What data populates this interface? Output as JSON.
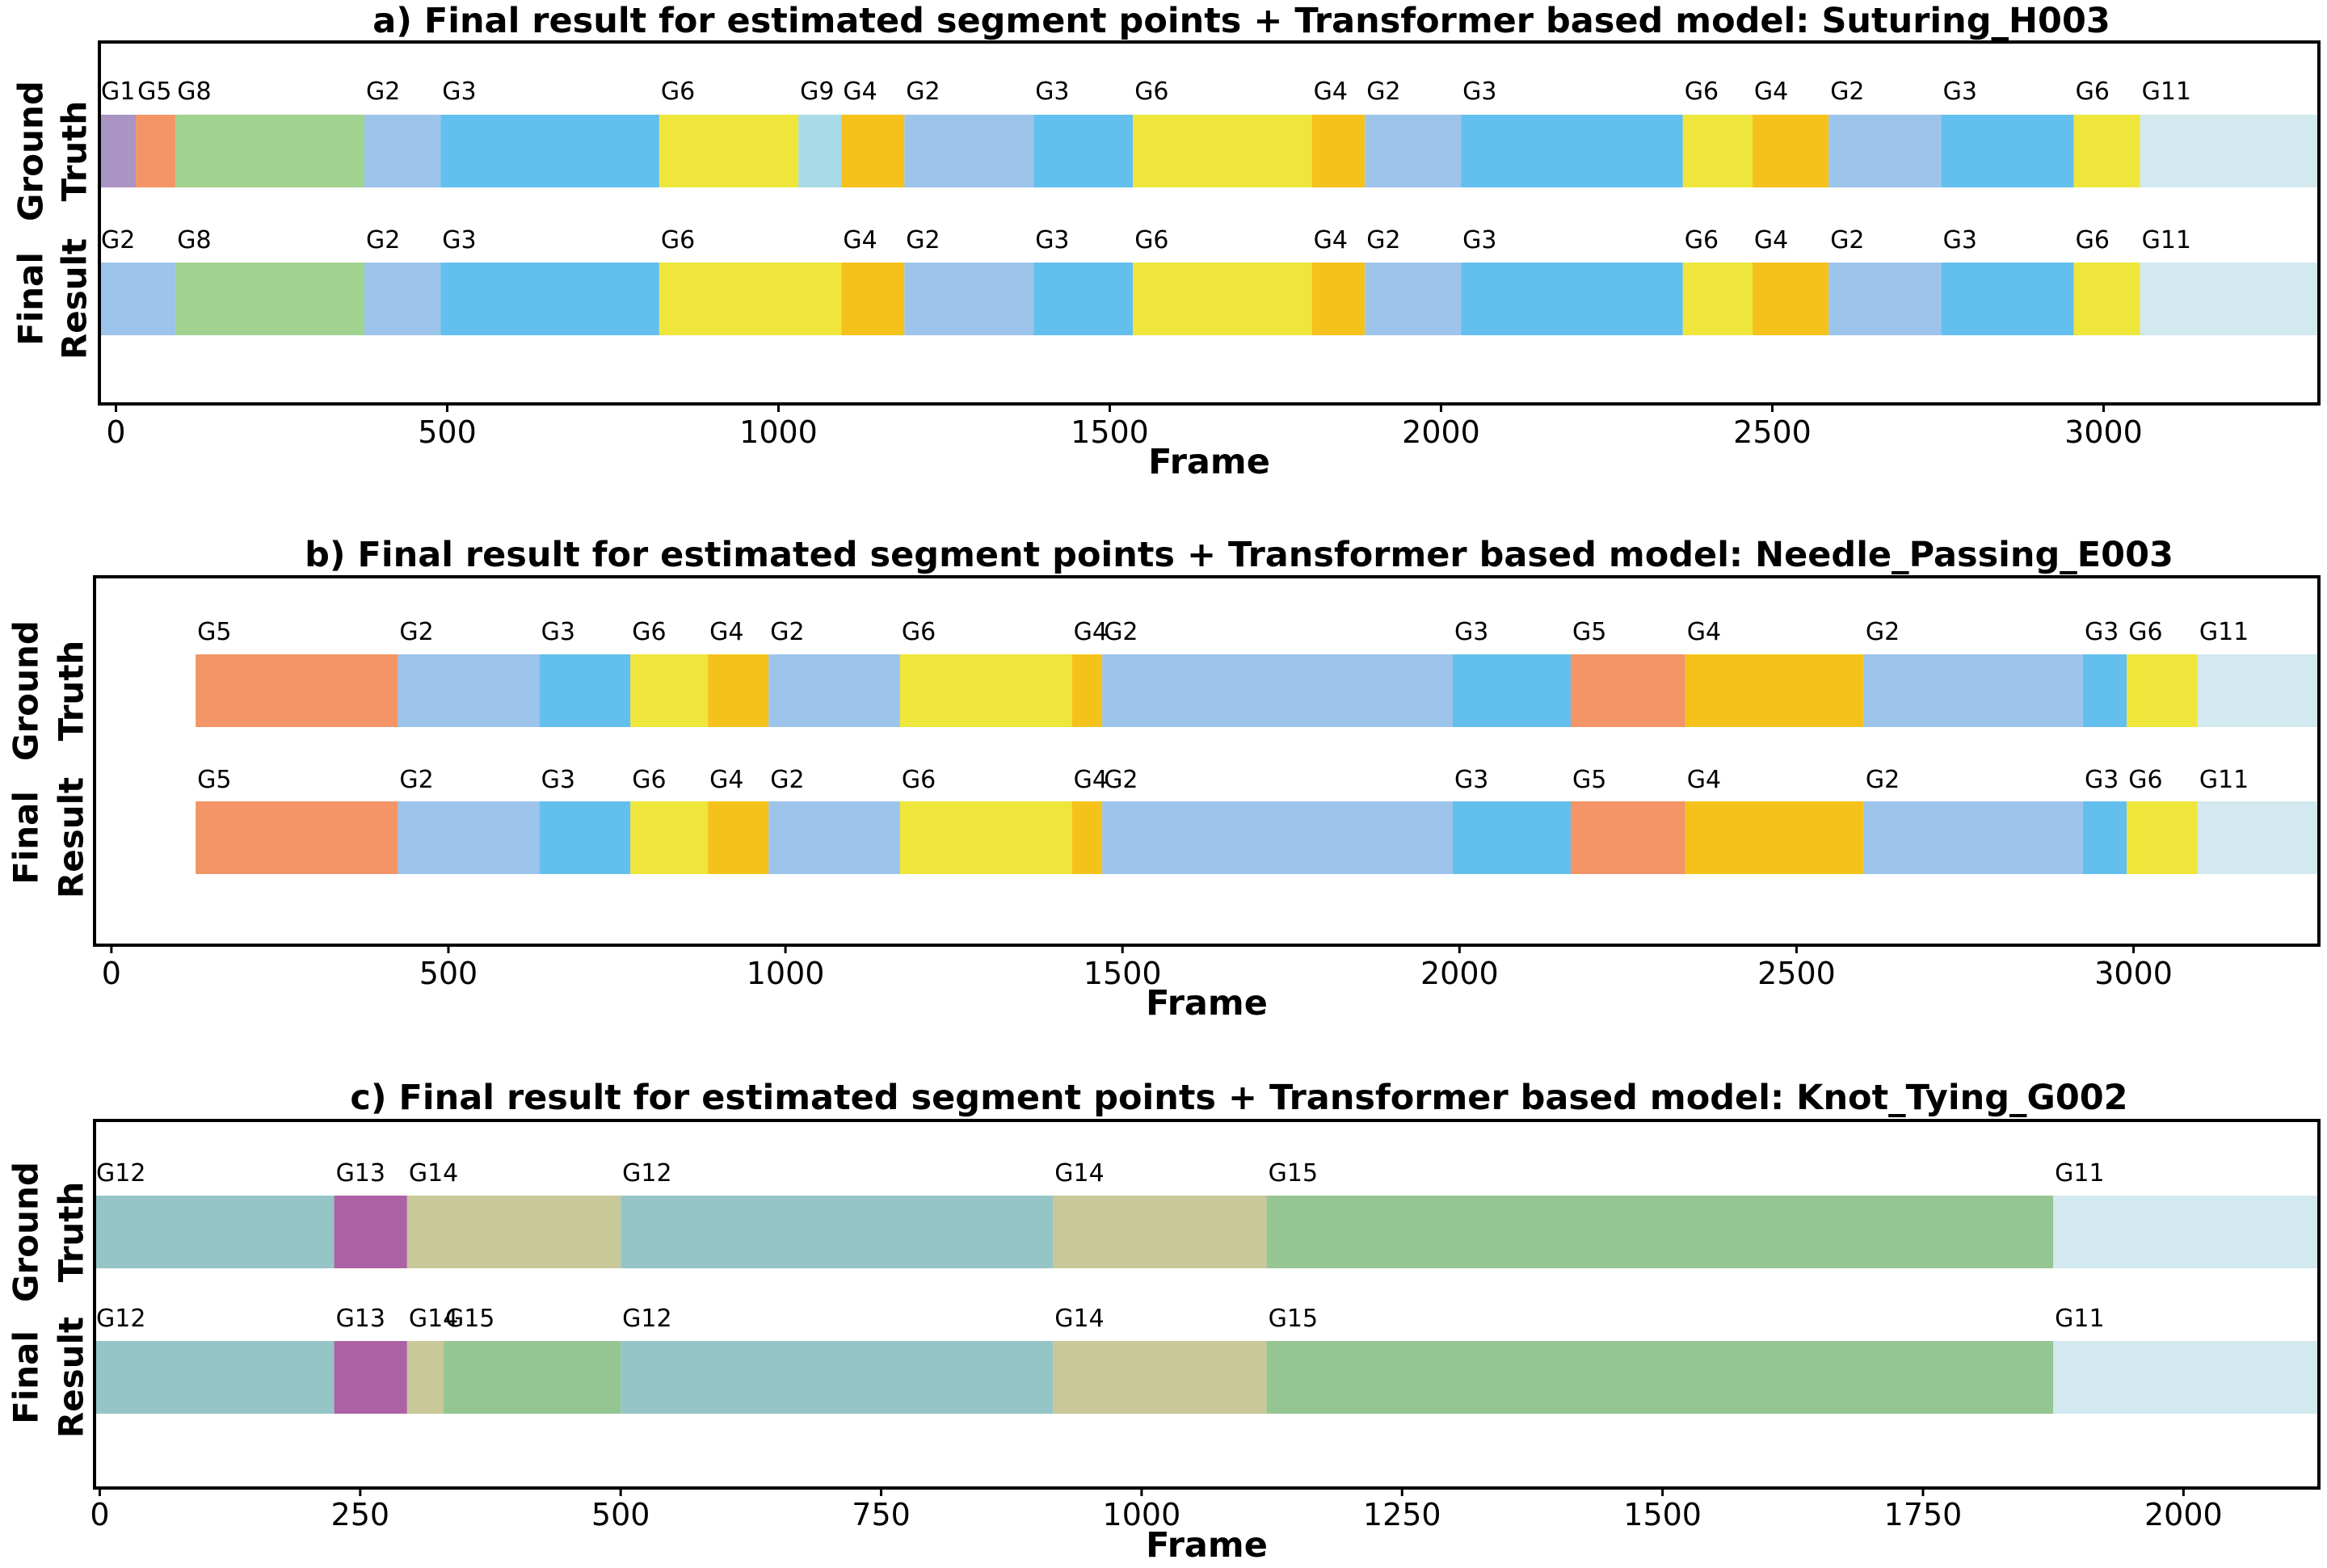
{
  "palette": {
    "G1": "#a994c3",
    "G2": "#9dc4ea",
    "G3": "#63bfee",
    "G4": "#f5c21c",
    "G5": "#f39566",
    "G6": "#eee63a",
    "G8": "#a1d28f",
    "G9": "#a8dbe7",
    "G11": "#d1e9ef",
    "G12": "#95c5c6",
    "G13": "#ad62a6",
    "G14": "#c8c898",
    "G15": "#95c593"
  },
  "chart_data": [
    {
      "type": "segmentation",
      "title": "a)  Final result for estimated segment points + Transformer based model: Suturing_H003",
      "xlabel": "Frame",
      "xlim": [
        -25,
        3325
      ],
      "xticks": [
        0,
        500,
        1000,
        1500,
        2000,
        2500,
        3000
      ],
      "tick_labels": [
        "0",
        "500",
        "1000",
        "1500",
        "2000",
        "2500",
        "3000"
      ],
      "rows": [
        {
          "label_lines": [
            "Ground",
            "Truth"
          ],
          "segments": [
            {
              "label": "G1",
              "start": -25,
              "end": 30
            },
            {
              "label": "G5",
              "start": 30,
              "end": 90
            },
            {
              "label": "G8",
              "start": 90,
              "end": 375
            },
            {
              "label": "G2",
              "start": 375,
              "end": 490
            },
            {
              "label": "G3",
              "start": 490,
              "end": 820
            },
            {
              "label": "G6",
              "start": 820,
              "end": 1030
            },
            {
              "label": "G9",
              "start": 1030,
              "end": 1095
            },
            {
              "label": "G4",
              "start": 1095,
              "end": 1190
            },
            {
              "label": "G2",
              "start": 1190,
              "end": 1385
            },
            {
              "label": "G3",
              "start": 1385,
              "end": 1535
            },
            {
              "label": "G6",
              "start": 1535,
              "end": 1805
            },
            {
              "label": "G4",
              "start": 1805,
              "end": 1885
            },
            {
              "label": "G2",
              "start": 1885,
              "end": 2030
            },
            {
              "label": "G3",
              "start": 2030,
              "end": 2365
            },
            {
              "label": "G6",
              "start": 2365,
              "end": 2470
            },
            {
              "label": "G4",
              "start": 2470,
              "end": 2585
            },
            {
              "label": "G2",
              "start": 2585,
              "end": 2755
            },
            {
              "label": "G3",
              "start": 2755,
              "end": 2955
            },
            {
              "label": "G6",
              "start": 2955,
              "end": 3055
            },
            {
              "label": "G11",
              "start": 3055,
              "end": 3325
            }
          ]
        },
        {
          "label_lines": [
            "Final",
            "Result"
          ],
          "segments": [
            {
              "label": "G2",
              "start": -25,
              "end": 90
            },
            {
              "label": "G8",
              "start": 90,
              "end": 375
            },
            {
              "label": "G2",
              "start": 375,
              "end": 490
            },
            {
              "label": "G3",
              "start": 490,
              "end": 820
            },
            {
              "label": "G6",
              "start": 820,
              "end": 1095
            },
            {
              "label": "G4",
              "start": 1095,
              "end": 1190
            },
            {
              "label": "G2",
              "start": 1190,
              "end": 1385
            },
            {
              "label": "G3",
              "start": 1385,
              "end": 1535
            },
            {
              "label": "G6",
              "start": 1535,
              "end": 1805
            },
            {
              "label": "G4",
              "start": 1805,
              "end": 1885
            },
            {
              "label": "G2",
              "start": 1885,
              "end": 2030
            },
            {
              "label": "G3",
              "start": 2030,
              "end": 2365
            },
            {
              "label": "G6",
              "start": 2365,
              "end": 2470
            },
            {
              "label": "G4",
              "start": 2470,
              "end": 2585
            },
            {
              "label": "G2",
              "start": 2585,
              "end": 2755
            },
            {
              "label": "G3",
              "start": 2755,
              "end": 2955
            },
            {
              "label": "G6",
              "start": 2955,
              "end": 3055
            },
            {
              "label": "G11",
              "start": 3055,
              "end": 3325
            }
          ]
        }
      ]
    },
    {
      "type": "segmentation",
      "title": "b)  Final result for estimated segment points + Transformer based model: Needle_Passing_E003",
      "xlabel": "Frame",
      "xlim": [
        -25,
        3275
      ],
      "xticks": [
        0,
        500,
        1000,
        1500,
        2000,
        2500,
        3000
      ],
      "tick_labels": [
        "0",
        "500",
        "1000",
        "1500",
        "2000",
        "2500",
        "3000"
      ],
      "rows": [
        {
          "label_lines": [
            "Ground",
            "Truth"
          ],
          "segments": [
            {
              "label": "G5",
              "start": 125,
              "end": 425
            },
            {
              "label": "G2",
              "start": 425,
              "end": 635
            },
            {
              "label": "G3",
              "start": 635,
              "end": 770
            },
            {
              "label": "G6",
              "start": 770,
              "end": 885
            },
            {
              "label": "G4",
              "start": 885,
              "end": 975
            },
            {
              "label": "G2",
              "start": 975,
              "end": 1170
            },
            {
              "label": "G6",
              "start": 1170,
              "end": 1425
            },
            {
              "label": "G4",
              "start": 1425,
              "end": 1470
            },
            {
              "label": "G2",
              "start": 1470,
              "end": 1990
            },
            {
              "label": "G3",
              "start": 1990,
              "end": 2165
            },
            {
              "label": "G5",
              "start": 2165,
              "end": 2335
            },
            {
              "label": "G4",
              "start": 2335,
              "end": 2600
            },
            {
              "label": "G2",
              "start": 2600,
              "end": 2925
            },
            {
              "label": "G3",
              "start": 2925,
              "end": 2990
            },
            {
              "label": "G6",
              "start": 2990,
              "end": 3095
            },
            {
              "label": "G11",
              "start": 3095,
              "end": 3275
            }
          ]
        },
        {
          "label_lines": [
            "Final",
            "Result"
          ],
          "segments": [
            {
              "label": "G5",
              "start": 125,
              "end": 425
            },
            {
              "label": "G2",
              "start": 425,
              "end": 635
            },
            {
              "label": "G3",
              "start": 635,
              "end": 770
            },
            {
              "label": "G6",
              "start": 770,
              "end": 885
            },
            {
              "label": "G4",
              "start": 885,
              "end": 975
            },
            {
              "label": "G2",
              "start": 975,
              "end": 1170
            },
            {
              "label": "G6",
              "start": 1170,
              "end": 1425
            },
            {
              "label": "G4",
              "start": 1425,
              "end": 1470
            },
            {
              "label": "G2",
              "start": 1470,
              "end": 1990
            },
            {
              "label": "G3",
              "start": 1990,
              "end": 2165
            },
            {
              "label": "G5",
              "start": 2165,
              "end": 2335
            },
            {
              "label": "G4",
              "start": 2335,
              "end": 2600
            },
            {
              "label": "G2",
              "start": 2600,
              "end": 2925
            },
            {
              "label": "G3",
              "start": 2925,
              "end": 2990
            },
            {
              "label": "G6",
              "start": 2990,
              "end": 3095
            },
            {
              "label": "G11",
              "start": 3095,
              "end": 3275
            }
          ]
        }
      ]
    },
    {
      "type": "segmentation",
      "title": "c)  Final result for estimated segment points + Transformer based model: Knot_Tying_G002",
      "xlabel": "Frame",
      "xlim": [
        -5,
        2130
      ],
      "xticks": [
        0,
        250,
        500,
        750,
        1000,
        1250,
        1500,
        1750,
        2000
      ],
      "tick_labels": [
        "0",
        "250",
        "500",
        "750",
        "1000",
        "1250",
        "1500",
        "1750",
        "2000"
      ],
      "rows": [
        {
          "label_lines": [
            "Ground",
            "Truth"
          ],
          "segments": [
            {
              "label": "G12",
              "start": -5,
              "end": 225
            },
            {
              "label": "G13",
              "start": 225,
              "end": 295
            },
            {
              "label": "G14",
              "start": 295,
              "end": 500
            },
            {
              "label": "G12",
              "start": 500,
              "end": 915
            },
            {
              "label": "G14",
              "start": 915,
              "end": 1120
            },
            {
              "label": "G15",
              "start": 1120,
              "end": 1875
            },
            {
              "label": "G11",
              "start": 1875,
              "end": 2130
            }
          ]
        },
        {
          "label_lines": [
            "Final",
            "Result"
          ],
          "segments": [
            {
              "label": "G12",
              "start": -5,
              "end": 225
            },
            {
              "label": "G13",
              "start": 225,
              "end": 295
            },
            {
              "label": "G14",
              "start": 295,
              "end": 330
            },
            {
              "label": "G15",
              "start": 330,
              "end": 500
            },
            {
              "label": "G12",
              "start": 500,
              "end": 915
            },
            {
              "label": "G14",
              "start": 915,
              "end": 1120
            },
            {
              "label": "G15",
              "start": 1120,
              "end": 1875
            },
            {
              "label": "G11",
              "start": 1875,
              "end": 2130
            }
          ]
        }
      ]
    }
  ]
}
